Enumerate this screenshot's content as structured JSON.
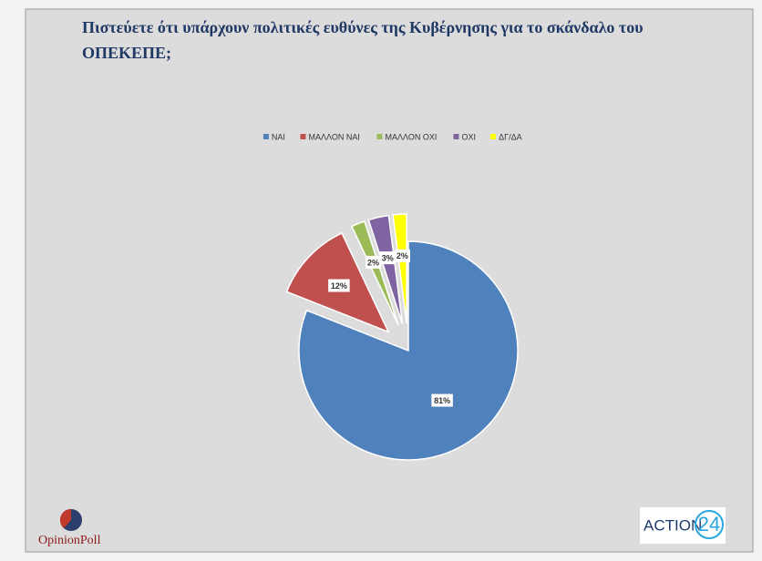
{
  "chart_data": {
    "type": "pie",
    "title": "Πιστεύετε ότι υπάρχουν πολιτικές ευθύνες της Κυβέρνησης για το σκάνδαλο του ΟΠΕΚΕΠΕ;",
    "categories": [
      "ΝΑΙ",
      "ΜΑΛΛΟΝ ΝΑΙ",
      "ΜΑΛΛΟΝ ΟΧΙ",
      "ΟΧΙ",
      "ΔΓ/ΔΑ"
    ],
    "values": [
      81,
      12,
      2,
      3,
      2
    ],
    "value_labels": [
      "81%",
      "12%",
      "2%",
      "3%",
      "2%"
    ],
    "colors": [
      "#4f81bd",
      "#c0504d",
      "#9bbb59",
      "#8064a2",
      "#ffff00"
    ],
    "legend": "top"
  },
  "branding": {
    "pollster": "OpinionPoll",
    "channel_word": "ACTION",
    "channel_number": "24"
  }
}
